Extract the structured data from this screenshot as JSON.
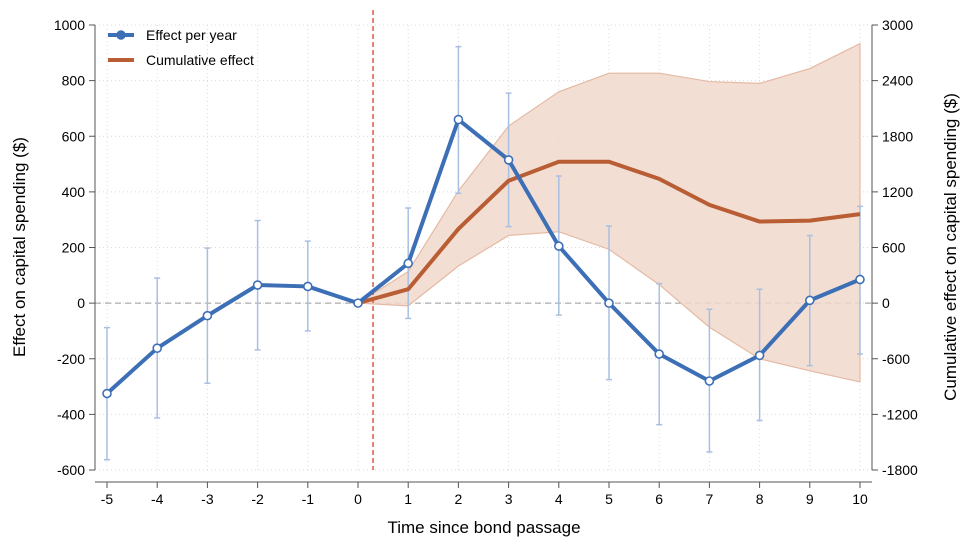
{
  "chart_data": {
    "type": "line",
    "x": [
      -5,
      -4,
      -3,
      -2,
      -1,
      0,
      1,
      2,
      3,
      4,
      5,
      6,
      7,
      8,
      9,
      10
    ],
    "xlabel": "Time since bond passage",
    "ylabel_left": "Effect on capital spending ($)",
    "ylabel_right": "Cumulative effect on capital spending ($)",
    "ylim_left": [
      -600,
      1000
    ],
    "yticks_left": [
      -600,
      -400,
      -200,
      0,
      200,
      400,
      600,
      800,
      1000
    ],
    "ylim_right": [
      -1800,
      3000
    ],
    "yticks_right": [
      -1800,
      -1200,
      -600,
      0,
      600,
      1200,
      1800,
      2400,
      3000
    ],
    "xticks": [
      -5,
      -4,
      -3,
      -2,
      -1,
      0,
      1,
      2,
      3,
      4,
      5,
      6,
      7,
      8,
      9,
      10
    ],
    "treatment_line_x": 0.3,
    "grid": true,
    "legend_position": "top-left",
    "series": [
      {
        "name": "Effect per year",
        "axis": "left",
        "color": "#3d6fb6",
        "x": [
          -5,
          -4,
          -3,
          -2,
          -1,
          0,
          1,
          2,
          3,
          4,
          5,
          6,
          7,
          8,
          9,
          10
        ],
        "values": [
          -325,
          -162,
          -45,
          65,
          60,
          0,
          143,
          660,
          515,
          205,
          0,
          -183,
          -280,
          -188,
          10,
          85
        ],
        "ci_lower": [
          -563,
          -413,
          -288,
          -168,
          -100,
          0,
          -55,
          395,
          275,
          -43,
          -275,
          -437,
          -535,
          -422,
          -225,
          -183
        ],
        "ci_upper": [
          -88,
          90,
          198,
          297,
          223,
          0,
          342,
          922,
          755,
          457,
          277,
          70,
          -22,
          50,
          243,
          348
        ]
      },
      {
        "name": "Cumulative effect",
        "axis": "right",
        "color": "#b95d34",
        "x": [
          0,
          1,
          2,
          3,
          4,
          5,
          6,
          7,
          8,
          9,
          10
        ],
        "values": [
          0,
          150,
          800,
          1320,
          1525,
          1525,
          1340,
          1060,
          880,
          890,
          960
        ],
        "ci_lower": [
          0,
          -30,
          400,
          730,
          770,
          580,
          200,
          -260,
          -600,
          -730,
          -850
        ],
        "ci_upper": [
          0,
          340,
          1210,
          1910,
          2280,
          2480,
          2480,
          2390,
          2370,
          2530,
          2800
        ]
      }
    ]
  }
}
